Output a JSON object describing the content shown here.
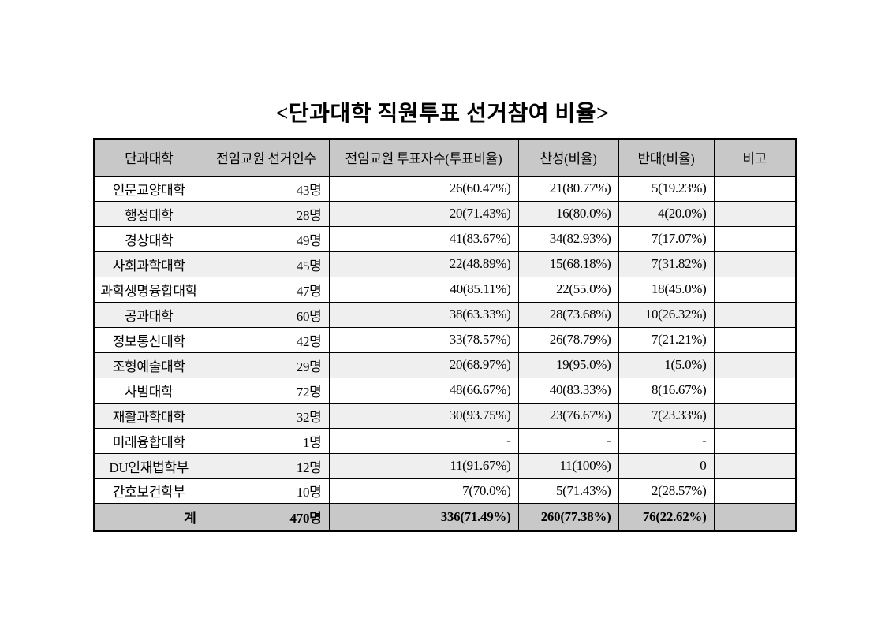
{
  "page": {
    "title": "<단과대학 직원투표 선거참여 비율>"
  },
  "table": {
    "headers": [
      "단과대학",
      "전임교원 선거인수",
      "전임교원 투표자수(투표비율)",
      "찬성(비율)",
      "반대(비율)",
      "비고"
    ],
    "rows": [
      [
        "인문교양대학",
        "43명",
        "26(60.47%)",
        "21(80.77%)",
        "5(19.23%)",
        ""
      ],
      [
        "행정대학",
        "28명",
        "20(71.43%)",
        "16(80.0%)",
        "4(20.0%)",
        ""
      ],
      [
        "경상대학",
        "49명",
        "41(83.67%)",
        "34(82.93%)",
        "7(17.07%)",
        ""
      ],
      [
        "사회과학대학",
        "45명",
        "22(48.89%)",
        "15(68.18%)",
        "7(31.82%)",
        ""
      ],
      [
        "과학생명융합대학",
        "47명",
        "40(85.11%)",
        "22(55.0%)",
        "18(45.0%)",
        ""
      ],
      [
        "공과대학",
        "60명",
        "38(63.33%)",
        "28(73.68%)",
        "10(26.32%)",
        ""
      ],
      [
        "정보통신대학",
        "42명",
        "33(78.57%)",
        "26(78.79%)",
        "7(21.21%)",
        ""
      ],
      [
        "조형예술대학",
        "29명",
        "20(68.97%)",
        "19(95.0%)",
        "1(5.0%)",
        ""
      ],
      [
        "사범대학",
        "72명",
        "48(66.67%)",
        "40(83.33%)",
        "8(16.67%)",
        ""
      ],
      [
        "재활과학대학",
        "32명",
        "30(93.75%)",
        "23(76.67%)",
        "7(23.33%)",
        ""
      ],
      [
        "미래융합대학",
        "1명",
        "-",
        "-",
        "-",
        ""
      ],
      [
        "DU인재법학부",
        "12명",
        "11(91.67%)",
        "11(100%)",
        "0",
        ""
      ],
      [
        "간호보건학부",
        "10명",
        "7(70.0%)",
        "5(71.43%)",
        "2(28.57%)",
        ""
      ]
    ],
    "total": [
      "계",
      "470명",
      "336(71.49%)",
      "260(77.38%)",
      "76(22.62%)",
      ""
    ]
  },
  "colors": {
    "header_bg": "#c8c8c8",
    "stripe_bg": "#efefef",
    "total_bg": "#c8c8c8",
    "border": "#000000",
    "page_bg": "#ffffff"
  }
}
